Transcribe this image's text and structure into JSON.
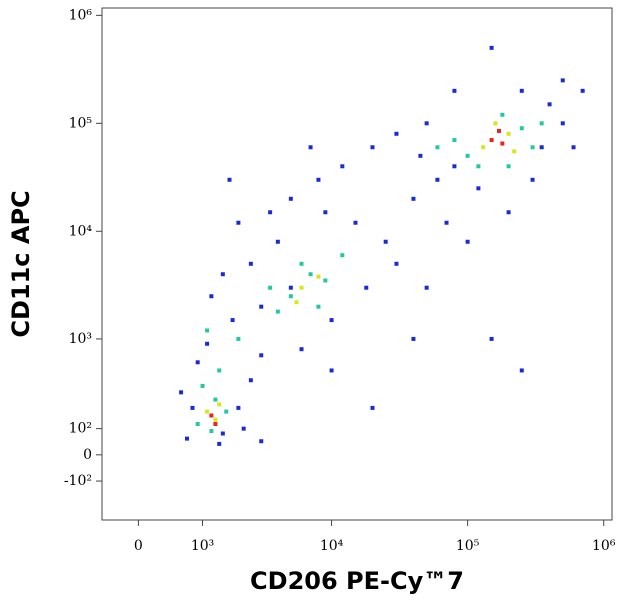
{
  "chart_data": {
    "type": "scatter",
    "x_label": "CD206 PE-Cy™7",
    "y_label": "CD11c APC",
    "xscale": "biexponential",
    "yscale": "biexponential",
    "xlim": [
      -500,
      1150000
    ],
    "ylim": [
      -320,
      1170000
    ],
    "xticks": [
      0,
      {
        "value": 1000,
        "label": "10³"
      },
      {
        "value": 10000,
        "label": "10⁴"
      },
      {
        "value": 100000,
        "label": "10⁵"
      },
      {
        "value": 1000000,
        "label": "10⁶"
      }
    ],
    "yticks": [
      {
        "value": -100,
        "label": "-10²"
      },
      0,
      {
        "value": 100,
        "label": "10²"
      },
      {
        "value": 1000,
        "label": "10³"
      },
      {
        "value": 10000,
        "label": "10⁴"
      },
      {
        "value": 100000,
        "label": "10⁵"
      },
      {
        "value": 1000000,
        "label": "10⁶"
      }
    ],
    "series": [
      {
        "color": "#1a2bd6",
        "x": [
          600,
          900,
          1500,
          2000,
          700,
          2500,
          1100,
          1800,
          3000,
          2500,
          4000,
          3500,
          5000,
          8000,
          12000,
          20000,
          30000,
          50000,
          15000,
          25000,
          30000,
          40000,
          60000,
          80000,
          250000,
          400000,
          500000,
          600000,
          300000,
          200000,
          100000,
          50000,
          150000,
          250000,
          20000,
          40000,
          10000,
          6000,
          3000,
          1500,
          2000,
          1200,
          1700,
          7000,
          150000,
          500000,
          80000,
          10000,
          3000,
          1400,
          800,
          2200,
          9000,
          18000,
          70000,
          120000,
          350000,
          700000,
          45000,
          5000
        ],
        "values": [
          300,
          600,
          80,
          200,
          60,
          400,
          900,
          1500,
          2000,
          5000,
          8000,
          15000,
          20000,
          30000,
          40000,
          60000,
          80000,
          100000,
          12000,
          8000,
          5000,
          20000,
          30000,
          40000,
          200000,
          150000,
          100000,
          60000,
          30000,
          15000,
          8000,
          3000,
          1000,
          500,
          200,
          1000,
          500,
          800,
          700,
          4000,
          12000,
          2500,
          30000,
          60000,
          500000,
          250000,
          200000,
          1500,
          50,
          40,
          200,
          100,
          15000,
          3000,
          12000,
          25000,
          60000,
          200000,
          50000,
          3000
        ]
      },
      {
        "color": "#22c9a0",
        "x": [
          900,
          1300,
          1600,
          1000,
          1200,
          1400,
          5000,
          7000,
          4000,
          9000,
          6000,
          12000,
          3500,
          8000,
          100000,
          250000,
          300000,
          80000,
          180000,
          350000,
          120000,
          60000,
          200000,
          1100,
          2000
        ],
        "values": [
          120,
          250,
          180,
          350,
          90,
          500,
          2500,
          4000,
          1800,
          3500,
          5000,
          6000,
          3000,
          2000,
          50000,
          90000,
          60000,
          70000,
          120000,
          100000,
          40000,
          60000,
          40000,
          1200,
          1000
        ]
      },
      {
        "color": "#d8e61a",
        "x": [
          1100,
          1300,
          1400,
          6000,
          8000,
          5500,
          130000,
          200000,
          160000,
          220000
        ],
        "values": [
          180,
          140,
          220,
          3000,
          3800,
          2200,
          60000,
          80000,
          100000,
          55000
        ]
      },
      {
        "color": "#e8231a",
        "x": [
          1200,
          1300,
          150000,
          180000,
          170000
        ],
        "values": [
          160,
          120,
          70000,
          65000,
          85000
        ]
      }
    ]
  }
}
